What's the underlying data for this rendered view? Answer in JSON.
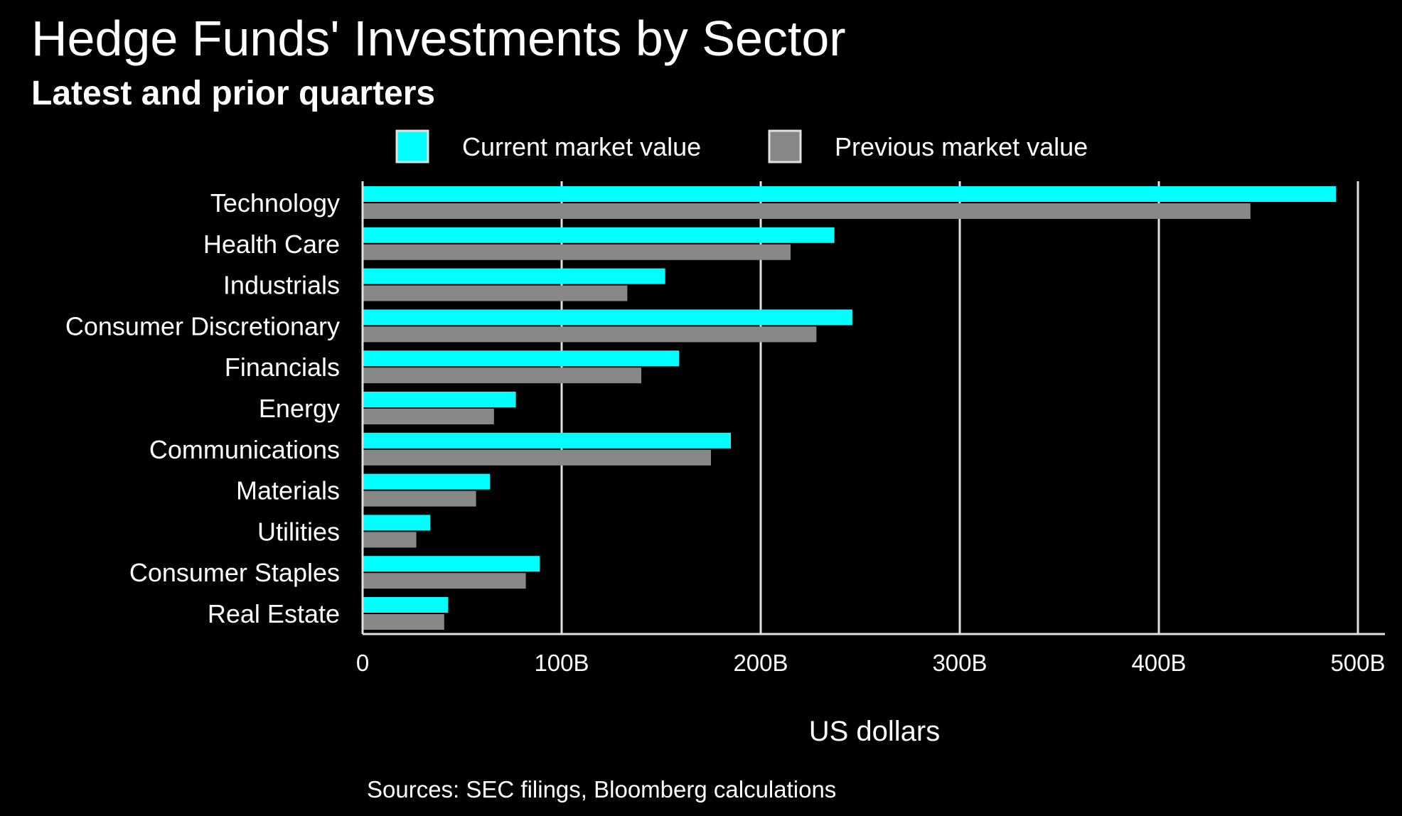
{
  "chart_data": {
    "type": "bar",
    "orientation": "horizontal",
    "title": "Hedge Funds' Investments by Sector",
    "subtitle": "Latest and prior quarters",
    "xlabel": "US dollars",
    "ylabel": "",
    "xlim": [
      0,
      500
    ],
    "x_ticks": [
      0,
      100,
      200,
      300,
      400,
      500
    ],
    "x_tick_labels": [
      "0",
      "100B",
      "200B",
      "300B",
      "400B",
      "500B"
    ],
    "grid": "vertical",
    "legend_position": "top",
    "categories": [
      "Technology",
      "Health Care",
      "Industrials",
      "Consumer Discretionary",
      "Financials",
      "Energy",
      "Communications",
      "Materials",
      "Utilities",
      "Consumer Staples",
      "Real Estate"
    ],
    "series": [
      {
        "name": "Current market value",
        "color": "#00ffff",
        "values": [
          489,
          237,
          152,
          246,
          159,
          77,
          185,
          64,
          34,
          89,
          43
        ]
      },
      {
        "name": "Previous market value",
        "color": "#888888",
        "values": [
          446,
          215,
          133,
          228,
          140,
          66,
          175,
          57,
          27,
          82,
          41
        ]
      }
    ],
    "source": "Sources: SEC filings, Bloomberg calculations"
  },
  "colors": {
    "background": "#000000",
    "text": "#ffffff",
    "grid": "#e0e0e0",
    "current": "#00ffff",
    "previous": "#888888"
  }
}
